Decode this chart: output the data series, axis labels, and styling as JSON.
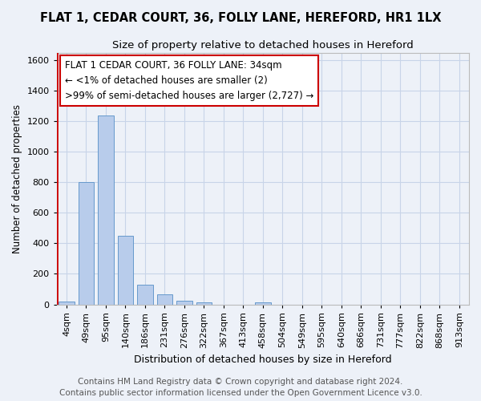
{
  "title": "FLAT 1, CEDAR COURT, 36, FOLLY LANE, HEREFORD, HR1 1LX",
  "subtitle": "Size of property relative to detached houses in Hereford",
  "xlabel": "Distribution of detached houses by size in Hereford",
  "ylabel": "Number of detached properties",
  "categories": [
    "4sqm",
    "49sqm",
    "95sqm",
    "140sqm",
    "186sqm",
    "231sqm",
    "276sqm",
    "322sqm",
    "367sqm",
    "413sqm",
    "458sqm",
    "504sqm",
    "549sqm",
    "595sqm",
    "640sqm",
    "686sqm",
    "731sqm",
    "777sqm",
    "822sqm",
    "868sqm",
    "913sqm"
  ],
  "values": [
    20,
    800,
    1240,
    450,
    130,
    65,
    25,
    15,
    0,
    0,
    15,
    0,
    0,
    0,
    0,
    0,
    0,
    0,
    0,
    0,
    0
  ],
  "bar_color": "#b8cceb",
  "bar_edge_color": "#6699cc",
  "grid_color": "#c8d4e8",
  "background_color": "#edf1f8",
  "annotation_box_color": "#ffffff",
  "annotation_border_color": "#cc0000",
  "property_line_color": "#cc0000",
  "annotation_text_line1": "FLAT 1 CEDAR COURT, 36 FOLLY LANE: 34sqm",
  "annotation_text_line2": "← <1% of detached houses are smaller (2)",
  "annotation_text_line3": ">99% of semi-detached houses are larger (2,727) →",
  "footer_line1": "Contains HM Land Registry data © Crown copyright and database right 2024.",
  "footer_line2": "Contains public sector information licensed under the Open Government Licence v3.0.",
  "ylim": [
    0,
    1650
  ],
  "yticks": [
    0,
    200,
    400,
    600,
    800,
    1000,
    1200,
    1400,
    1600
  ],
  "title_fontsize": 10.5,
  "subtitle_fontsize": 9.5,
  "xlabel_fontsize": 9,
  "ylabel_fontsize": 8.5,
  "tick_fontsize": 8,
  "annotation_fontsize": 8.5,
  "footer_fontsize": 7.5
}
